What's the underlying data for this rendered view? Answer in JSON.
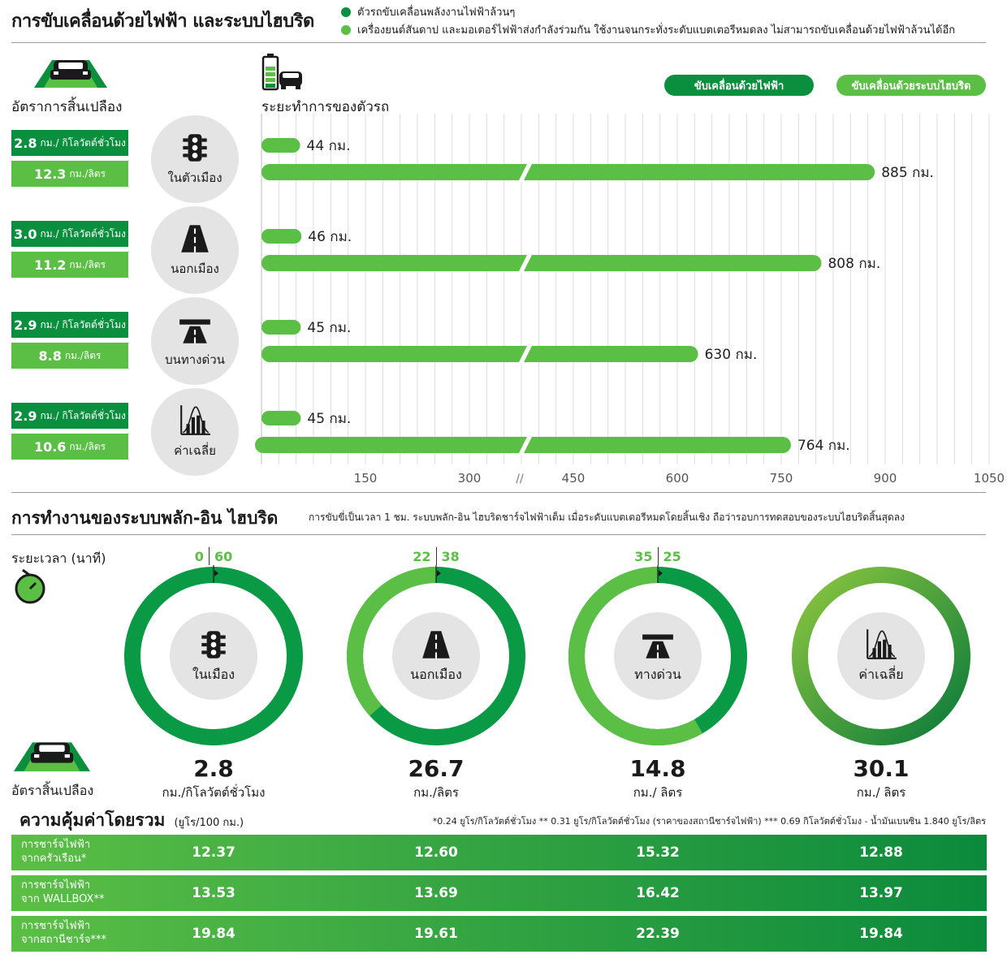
{
  "header": {
    "title": "การขับเคลื่อนด้วยไฟฟ้า และระบบไฮบริด",
    "legend": [
      {
        "text": "ตัวรถขับเคลื่อนพลังงานไฟฟ้าล้วนๆ",
        "color": "#0a8f3e"
      },
      {
        "text": "เครื่องยนต์สันดาป และมอเตอร์ไฟฟ้าส่งกำลังร่วมกัน ใช้งานจนกระทั่งระดับแบตเตอรีหมดลง ไม่สามารถขับเคลื่อนด้วยไฟฟ้าล้วนได้อีก",
        "color": "#5bbf45"
      }
    ]
  },
  "section1": {
    "consumption_label": "อัตราการสิ้นเปลือง",
    "range_label": "ระยะทำการของตัวรถ",
    "pill_electric": "ขับเคลื่อนด้วยไฟฟ้า",
    "pill_hybrid": "ขับเคลื่อนด้วยระบบไฮบริด",
    "categories": [
      {
        "label": "ในตัวเมือง",
        "icon": "traffic-light-icon",
        "rate_kwh": "2.8",
        "rate_kwh_unit": "กม./ กิโลวัตต์ชั่วโมง",
        "rate_l": "12.3",
        "rate_l_unit": "กม./ลิตร"
      },
      {
        "label": "นอกเมือง",
        "icon": "road-icon",
        "rate_kwh": "3.0",
        "rate_kwh_unit": "กม./ กิโลวัตต์ชั่วโมง",
        "rate_l": "11.2",
        "rate_l_unit": "กม./ลิตร"
      },
      {
        "label": "บนทางด่วน",
        "icon": "highway-icon",
        "rate_kwh": "2.9",
        "rate_kwh_unit": "กม./ กิโลวัตต์ชั่วโมง",
        "rate_l": "8.8",
        "rate_l_unit": "กม./ลิตร"
      },
      {
        "label": "ค่าเฉลี่ย",
        "icon": "average-chart-icon",
        "rate_kwh": "2.9",
        "rate_kwh_unit": "กม./ กิโลวัตต์ชั่วโมง",
        "rate_l": "10.6",
        "rate_l_unit": "กม./ลิตร"
      }
    ]
  },
  "chart_data": {
    "type": "bar",
    "categories": [
      "ในตัวเมือง",
      "นอกเมือง",
      "บนทางด่วน",
      "ค่าเฉลี่ย"
    ],
    "series": [
      {
        "name": "ขับเคลื่อนด้วยไฟฟ้า",
        "values": [
          44,
          46,
          45,
          45
        ],
        "labels": [
          "44 กม.",
          "46 กม.",
          "45 กม.",
          "45 กม."
        ]
      },
      {
        "name": "ขับเคลื่อนด้วยระบบไฮบริด",
        "values": [
          885,
          808,
          630,
          764
        ],
        "labels": [
          "885 กม.",
          "808 กม.",
          "630 กม.",
          "764 กม."
        ]
      }
    ],
    "x_ticks": [
      "150",
      "300",
      "450",
      "600",
      "750",
      "900",
      "1050"
    ],
    "axis_break": "//",
    "grid": true,
    "orientation": "horizontal"
  },
  "section2": {
    "title": "การทำงานของระบบพลัก-อิน ไฮบริด",
    "subtitle": "การขับขี่เป็นเวลา 1 ชม. ระบบพลัก-อิน ไฮบริดชาร์จไฟฟ้าเต็ม เมื่อระดับแบตเตอรีหมดโดยสิ้นเชิง ถือว่ารอบการทดสอบของระบบไฮบริดสิ้นสุดลง",
    "time_label": "ระยะเวลา (นาที)",
    "consumption_label": "อัตราสิ้นเปลือง",
    "rings": [
      {
        "label": "ในเมือง",
        "icon": "traffic-light-icon",
        "hybrid_min": "0",
        "electric_min": "60",
        "hybrid_val": 0,
        "efficiency": "2.8",
        "unit": "กม./กิโลวัตต์ชั่วโมง"
      },
      {
        "label": "นอกเมือง",
        "icon": "road-icon",
        "hybrid_min": "22",
        "electric_min": "38",
        "hybrid_val": 22,
        "efficiency": "26.7",
        "unit": "กม./ลิตร"
      },
      {
        "label": "ทางด่วน",
        "icon": "highway-icon",
        "hybrid_min": "35",
        "electric_min": "25",
        "hybrid_val": 35,
        "efficiency": "14.8",
        "unit": "กม./ ลิตร"
      },
      {
        "label": "ค่าเฉลี่ย",
        "icon": "average-chart-icon",
        "hybrid_min": "",
        "electric_min": "",
        "hybrid_val": null,
        "efficiency": "30.1",
        "unit": "กม./ ลิตร"
      }
    ]
  },
  "section3": {
    "title": "ความคุ้มค่าโดยรวม",
    "title_unit": "(ยูโร/100 กม.)",
    "footnote": "*0.24 ยูโร/กิโลวัตต์ชั่วโมง  ** 0.31 ยูโร/กิโลวัตต์ชั่วโมง (ราคาของสถานีชาร์จไฟฟ้า)  *** 0.69 กิโลวัตต์ชั่วโมง - น้ำมันเบนซิน 1.840 ยูโร/ลิตร",
    "rows": [
      {
        "label1": "การชาร์จไฟฟ้า",
        "label2": "จากครัวเรือน*",
        "values": [
          "12.37",
          "12.60",
          "15.32",
          "12.88"
        ]
      },
      {
        "label1": "การชาร์จไฟฟ้า",
        "label2": "จาก WALLBOX**",
        "values": [
          "13.53",
          "13.69",
          "16.42",
          "13.97"
        ]
      },
      {
        "label1": "การชาร์จไฟฟ้า",
        "label2": "จากสถานีชาร์จ***",
        "values": [
          "19.84",
          "19.61",
          "22.39",
          "19.84"
        ]
      }
    ]
  },
  "colors": {
    "dark_green": "#0a8f3e",
    "light_green": "#5bbf45",
    "grid": "#d9d9d9",
    "circle_bg": "#e4e4e4"
  }
}
